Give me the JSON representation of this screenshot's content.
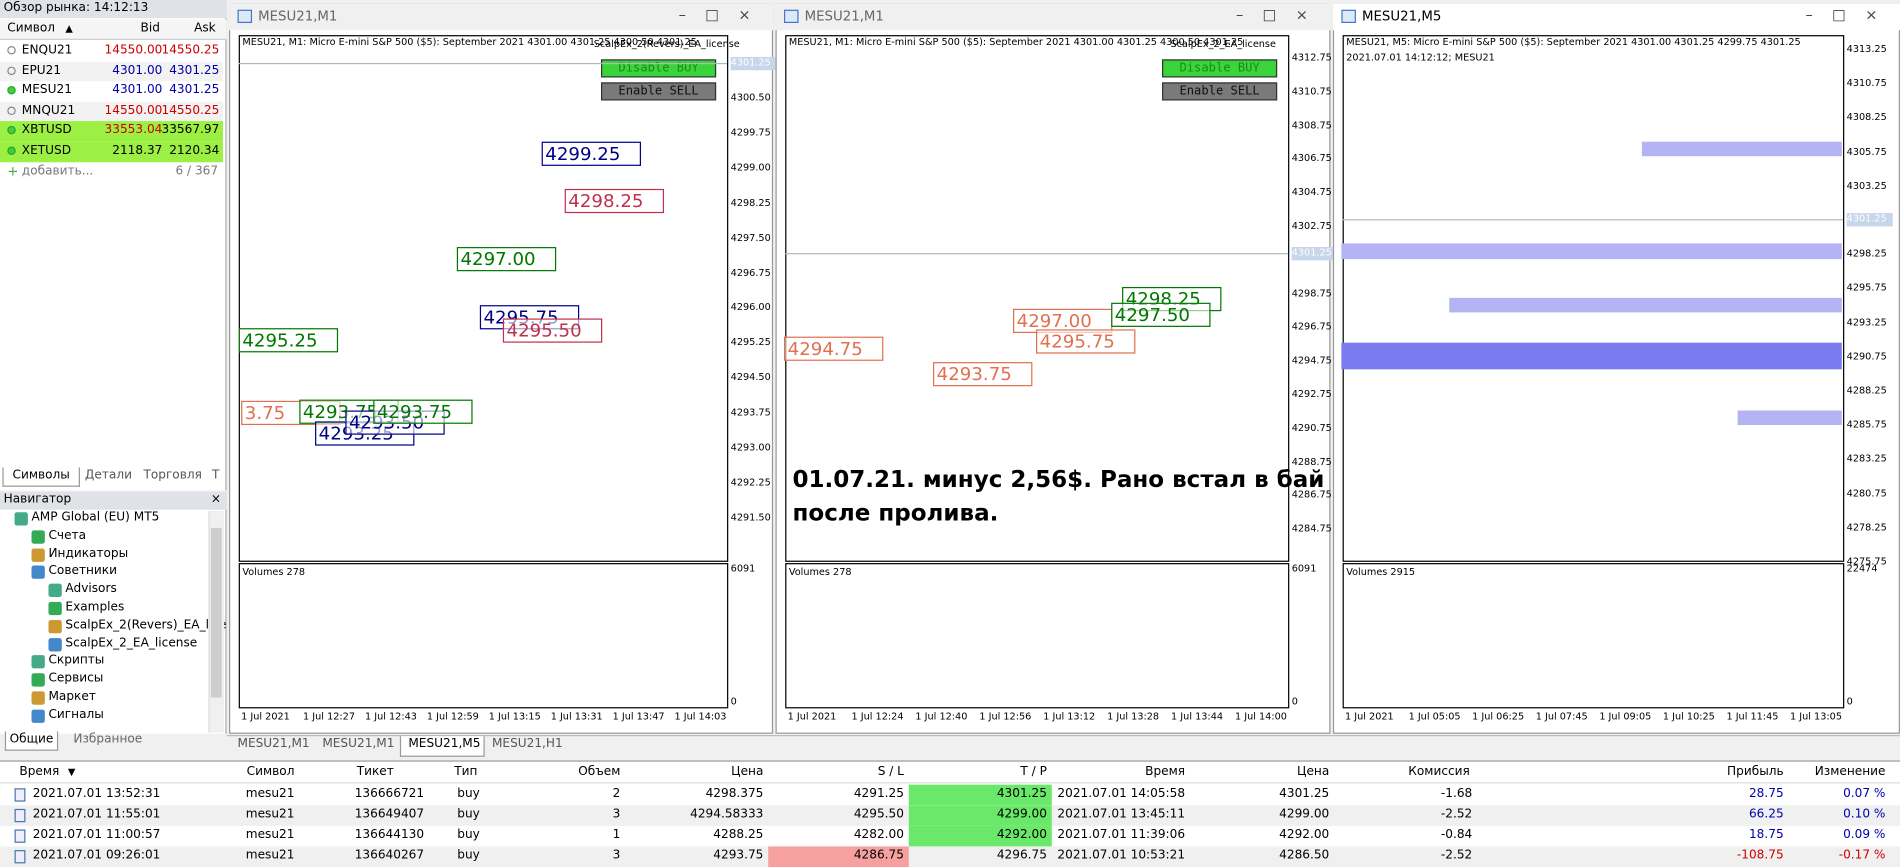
{
  "market_watch": {
    "title": "Обзор рынка: 14:12:13",
    "columns": [
      "Символ",
      "Bid",
      "Ask"
    ],
    "rows": [
      [
        "ENQU21",
        "14550.00",
        "14550.25"
      ],
      [
        "EPU21",
        "4301.00",
        "4301.25"
      ],
      [
        "MESU21",
        "4301.00",
        "4301.25"
      ],
      [
        "MNQU21",
        "14550.00",
        "14550.25"
      ],
      [
        "XBTUSD",
        "33553.04",
        "33567.97"
      ],
      [
        "XETUSD",
        "2118.37",
        "2120.34"
      ]
    ],
    "add": "добавить...",
    "count": "6 / 367",
    "tabs": [
      "Символы",
      "Детали",
      "Торговля",
      "Т"
    ]
  },
  "navigator": {
    "title": "Навигатор",
    "items": [
      "AMP Global (EU) MT5",
      "Счета",
      "Индикаторы",
      "Советники",
      "Advisors",
      "Examples",
      "ScalpEx_2(Revers)_EA_lice",
      "ScalpEx_2_EA_license",
      "Скрипты",
      "Сервисы",
      "Маркет",
      "Сигналы"
    ],
    "tabs": [
      "Общие",
      "Избранное"
    ]
  },
  "charts": [
    {
      "window_title": "MESU21,M1",
      "info": "MESU21, M1:  Micro E-mini S&P 500 ($5): September 2021  4301.00 4301.25 4300.50 4301.25",
      "ea": "ScalpEx_2(Revers)_EA_license",
      "buttons": [
        "Disable BUY",
        "Enable SELL"
      ],
      "price_labels": [
        "4301.25",
        "4300.50",
        "4299.75",
        "4299.00",
        "4298.25",
        "4297.50",
        "4296.75",
        "4296.00",
        "4295.25",
        "4294.50",
        "4293.75",
        "4293.00",
        "4292.25",
        "4291.50"
      ],
      "time_labels": [
        "1 Jul 2021",
        "1 Jul 12:27",
        "1 Jul 12:43",
        "1 Jul 12:59",
        "1 Jul 13:15",
        "1 Jul 13:31",
        "1 Jul 13:47",
        "1 Jul 14:03"
      ],
      "volume_label": "Volumes 278",
      "volume_max": "6091",
      "volume_min": "0",
      "trade_labels": [
        "4299.25",
        "4298.25",
        "4297.00",
        "4295.75",
        "4295.50",
        "4295.25",
        "3.75",
        "4293.75",
        "4293.25",
        "4293.50",
        "4293.75"
      ]
    },
    {
      "window_title": "MESU21,M1",
      "info": "MESU21, M1:  Micro E-mini S&P 500 ($5): September 2021  4301.00 4301.25 4300.50 4301.25",
      "ea": "ScalpEx_2_EA_license",
      "buttons": [
        "Disable BUY",
        "Enable SELL"
      ],
      "price_labels": [
        "4312.75",
        "4310.75",
        "4308.75",
        "4306.75",
        "4304.75",
        "4302.75",
        "4301.25",
        "4298.75",
        "4296.75",
        "4294.75",
        "4292.75",
        "4290.75",
        "4288.75",
        "4286.75",
        "4284.75"
      ],
      "time_labels": [
        "1 Jul 2021",
        "1 Jul 12:24",
        "1 Jul 12:40",
        "1 Jul 12:56",
        "1 Jul 13:12",
        "1 Jul 13:28",
        "1 Jul 13:44",
        "1 Jul 14:00"
      ],
      "volume_label": "Volumes 278",
      "volume_max": "6091",
      "volume_min": "0",
      "trade_labels": [
        "4294.75",
        "4297.00",
        "4295.75",
        "4293.75",
        "4298.25",
        "4297.50"
      ]
    },
    {
      "window_title": "MESU21,M5",
      "info": "MESU21, M5:  Micro E-mini S&P 500 ($5): September 2021  4301.00 4301.25 4299.75 4301.25",
      "info2": "2021.07.01 14:12:12; MESU21",
      "price_labels": [
        "4313.25",
        "4310.75",
        "4308.25",
        "4305.75",
        "4303.25",
        "4301.25",
        "4298.25",
        "4295.75",
        "4293.25",
        "4290.75",
        "4288.25",
        "4285.75",
        "4283.25",
        "4280.75",
        "4278.25",
        "4275.75"
      ],
      "time_labels": [
        "1 Jul 2021",
        "1 Jul 05:05",
        "1 Jul 06:25",
        "1 Jul 07:45",
        "1 Jul 09:05",
        "1 Jul 10:25",
        "1 Jul 11:45",
        "1 Jul 13:05"
      ],
      "volume_label": "Volumes 2915",
      "volume_max": "22474",
      "volume_min": "0"
    }
  ],
  "note": [
    "01.07.21. минус 2,56$. Рано встал в бай",
    "после пролива."
  ],
  "chart_tabs": [
    "MESU21,M1",
    "MESU21,M1",
    "MESU21,M5",
    "MESU21,H1"
  ],
  "trades": {
    "columns": [
      "Время",
      "Символ",
      "Тикет",
      "Тип",
      "Объем",
      "Цена",
      "S / L",
      "T / P",
      "Время",
      "Цена",
      "Комиссия",
      "Прибыль",
      "Изменение"
    ],
    "rows": [
      [
        "2021.07.01 13:52:31",
        "mesu21",
        "136666721",
        "buy",
        "2",
        "4298.375",
        "4291.25",
        "4301.25",
        "2021.07.01 14:05:58",
        "4301.25",
        "-1.68",
        "28.75",
        "0.07 %"
      ],
      [
        "2021.07.01 11:55:01",
        "mesu21",
        "136649407",
        "buy",
        "3",
        "4294.58333",
        "4295.50",
        "4299.00",
        "2021.07.01 13:45:11",
        "4299.00",
        "-2.52",
        "66.25",
        "0.10 %"
      ],
      [
        "2021.07.01 11:00:57",
        "mesu21",
        "136644130",
        "buy",
        "1",
        "4288.25",
        "4282.00",
        "4292.00",
        "2021.07.01 11:39:06",
        "4292.00",
        "-0.84",
        "18.75",
        "0.09 %"
      ],
      [
        "2021.07.01 09:26:01",
        "mesu21",
        "136640267",
        "buy",
        "3",
        "4293.75",
        "4286.75",
        "4296.75",
        "2021.07.01 10:53:21",
        "4286.50",
        "-2.52",
        "-108.75",
        "-0.17 %"
      ]
    ]
  }
}
